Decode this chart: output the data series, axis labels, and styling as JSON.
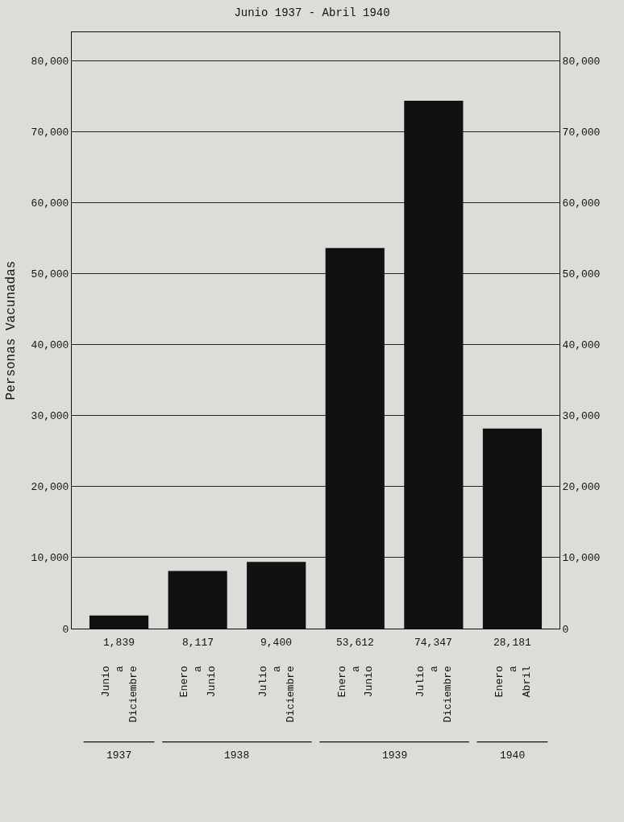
{
  "chart_data": {
    "type": "bar",
    "title": "Junio 1937 - Abril 1940",
    "ylabel": "Personas Vacunadas",
    "categories": [
      "Junio\na\nDiciembre",
      "Enero\na\nJunio",
      "Julio\na\nDiciembre",
      "Enero\na\nJunio",
      "Julio\na\nDiciembre",
      "Enero\na\nAbril"
    ],
    "values": [
      1839,
      8117,
      9400,
      53612,
      74347,
      28181
    ],
    "value_labels": [
      "1,839",
      "8,117",
      "9,400",
      "53,612",
      "74,347",
      "28,181"
    ],
    "color": "#111111",
    "ylim": [
      0,
      84000
    ],
    "yticks": [
      {
        "value": 0,
        "label": "0"
      },
      {
        "value": 10000,
        "label": "10,000"
      },
      {
        "value": 20000,
        "label": "20,000"
      },
      {
        "value": 30000,
        "label": "30,000"
      },
      {
        "value": 40000,
        "label": "40,000"
      },
      {
        "value": 50000,
        "label": "50,000"
      },
      {
        "value": 60000,
        "label": "60,000"
      },
      {
        "value": 70000,
        "label": "70,000"
      },
      {
        "value": 80000,
        "label": "80,000"
      }
    ],
    "y2lim": [
      0,
      84000
    ],
    "y2ticks": [
      {
        "value": 0,
        "label": "0"
      },
      {
        "value": 10000,
        "label": "10,000"
      },
      {
        "value": 20000,
        "label": "20,000"
      },
      {
        "value": 30000,
        "label": "30,000"
      },
      {
        "value": 40000,
        "label": "40,000"
      },
      {
        "value": 50000,
        "label": "50,000"
      },
      {
        "value": 60000,
        "label": "60,000"
      },
      {
        "value": 70000,
        "label": "70,000"
      },
      {
        "value": 80000,
        "label": "80,000"
      }
    ],
    "annotations": [
      "1937",
      "1938",
      "1939",
      "1940"
    ],
    "grid": "y"
  }
}
